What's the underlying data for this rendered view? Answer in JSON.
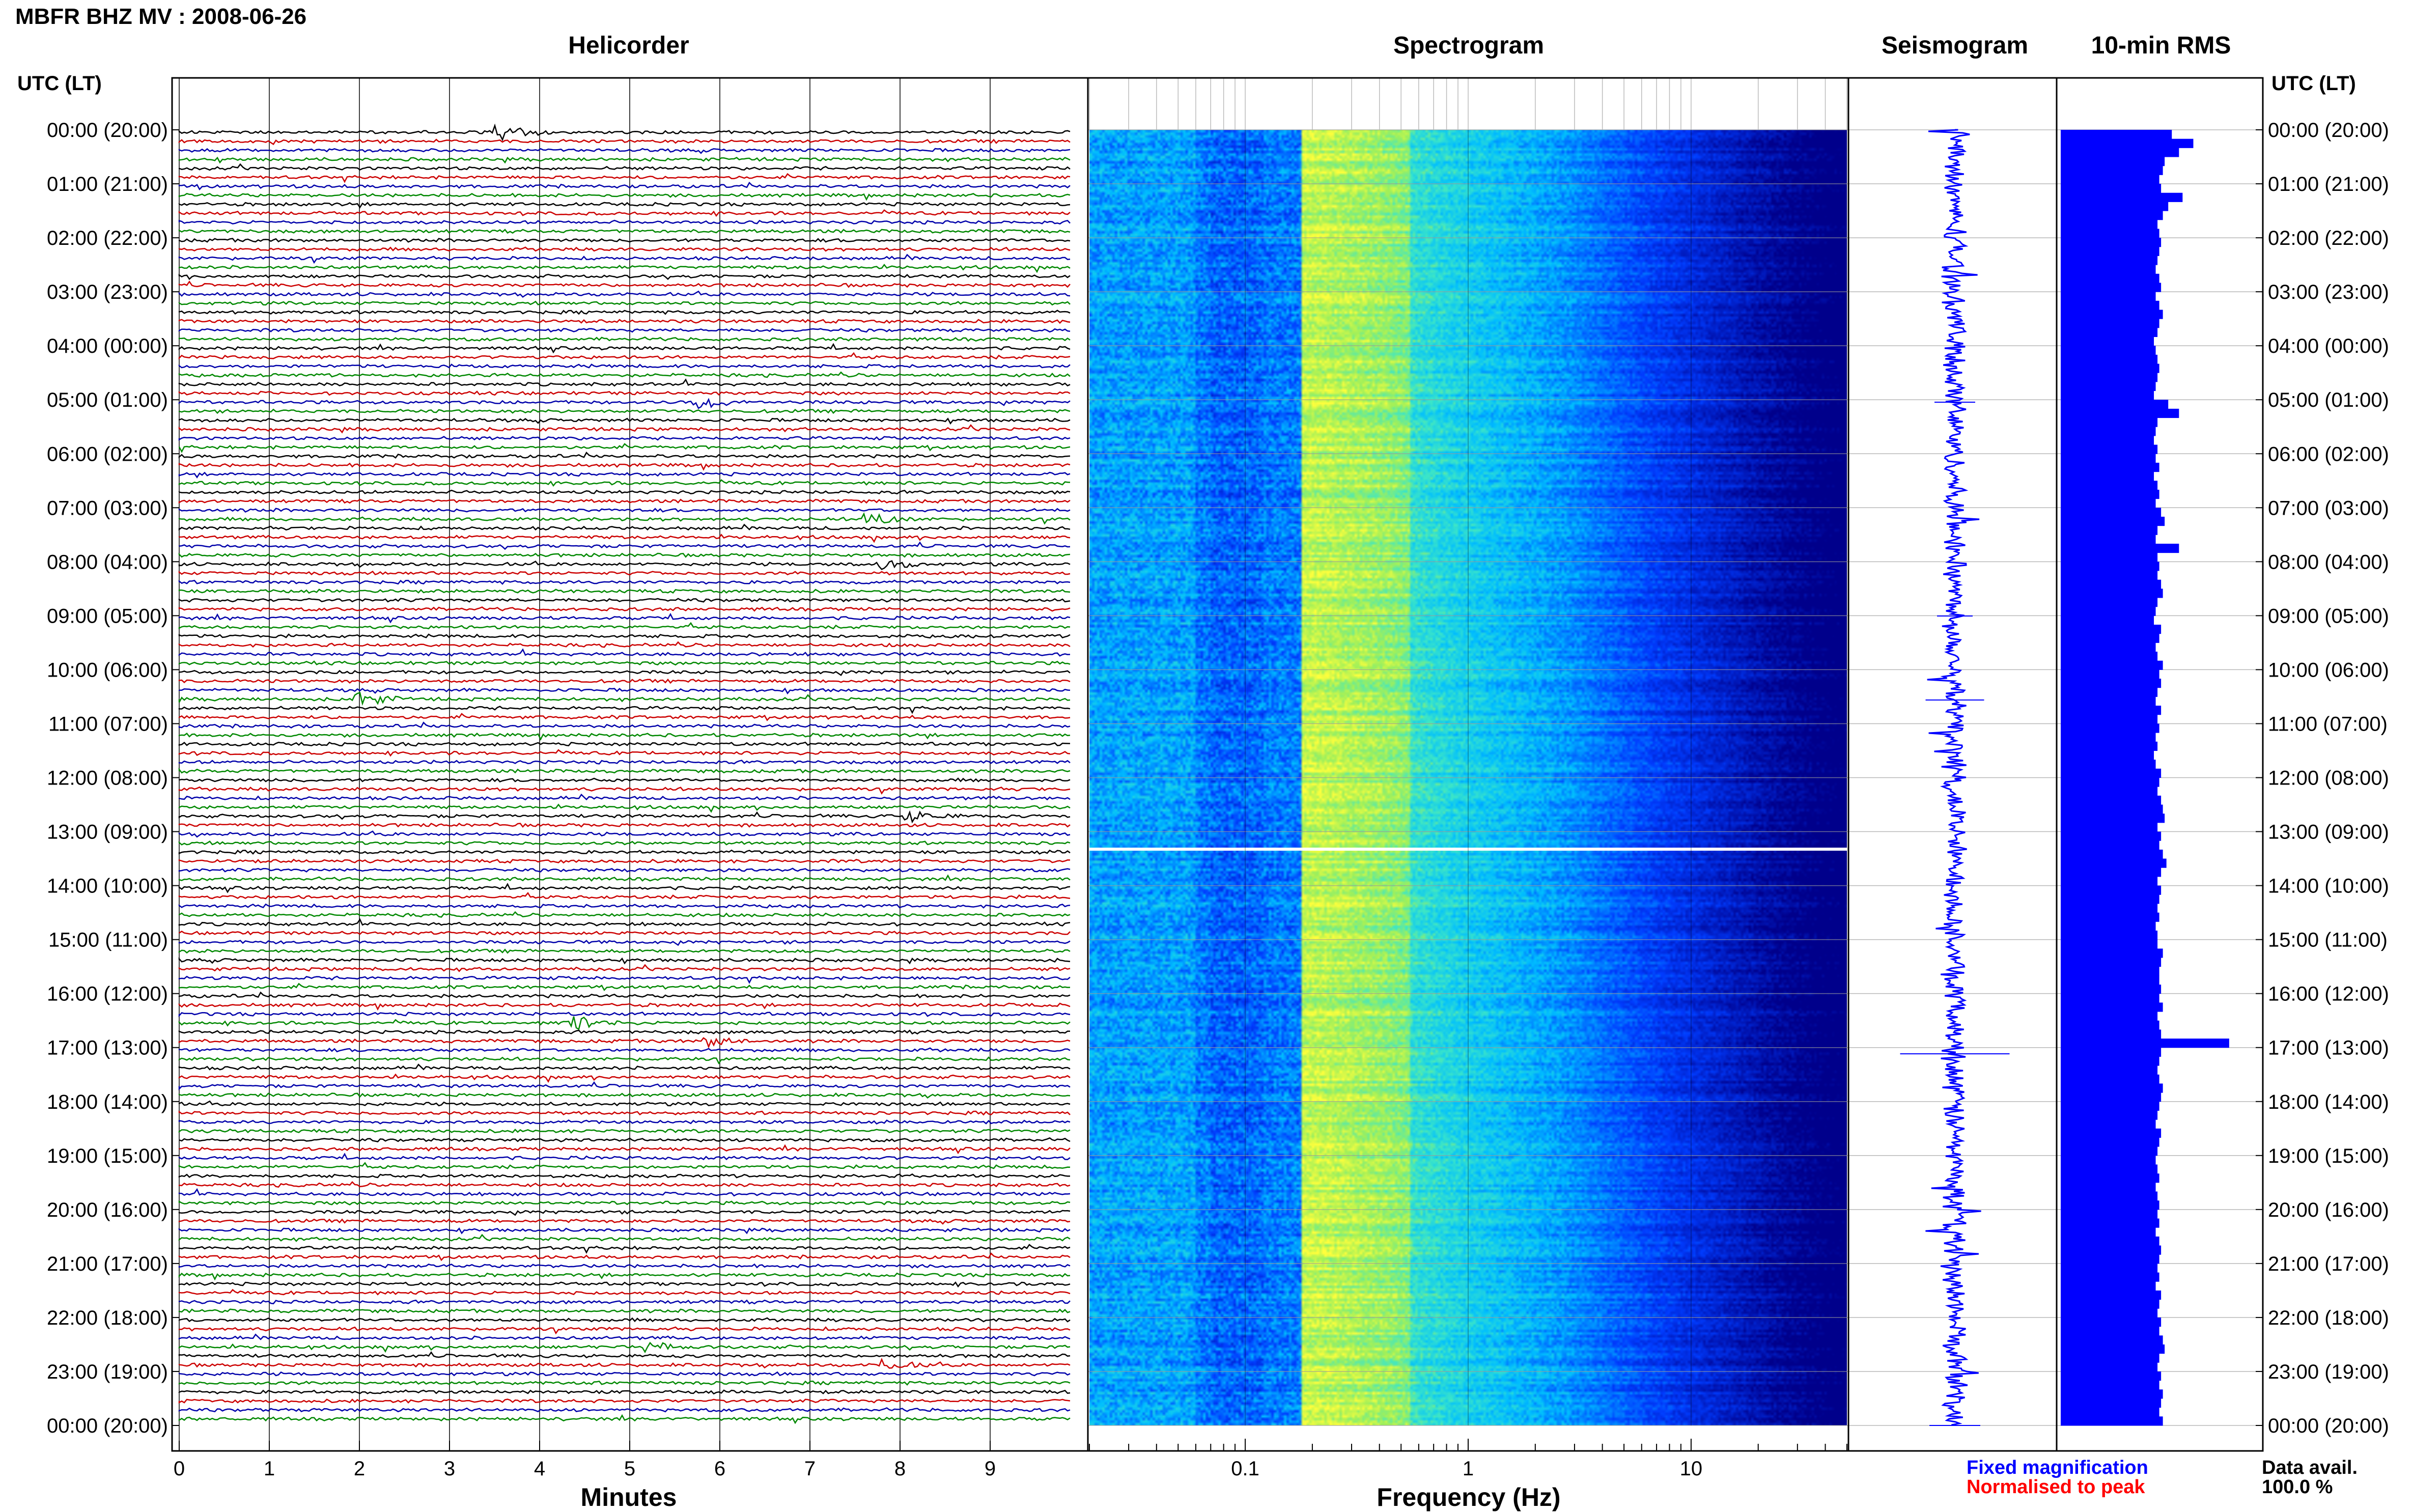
{
  "header": {
    "title": "MBFR BHZ MV : 2008-06-26"
  },
  "panels": {
    "helicorder": "Helicorder",
    "spectrogram": "Spectrogram",
    "seismogram": "Seismogram",
    "rms": "10-min RMS"
  },
  "axes": {
    "left_label": "UTC (LT)",
    "right_label": "UTC (LT)",
    "helicorder_xlabel": "Minutes",
    "spectrogram_xlabel": "Frequency (Hz)"
  },
  "legend": {
    "fixed": "Fixed magnification",
    "normalised": "Normalised to peak",
    "fixed_color": "#0000ff",
    "normalised_color": "#ff0000"
  },
  "data_availability": {
    "label": "Data avail.",
    "value": "100.0 %"
  },
  "colors": {
    "trace_cycle": [
      "#000000",
      "#cc0000",
      "#0000aa",
      "#008800"
    ],
    "spectrogram_low": "#00008b",
    "spectrogram_high": "#ffff33",
    "rms_bar": "#0000ff"
  },
  "chart_data": [
    {
      "type": "line",
      "title": "Helicorder",
      "xlabel": "Minutes",
      "x_ticks": [
        "0",
        "1",
        "2",
        "3",
        "4",
        "5",
        "6",
        "7",
        "8",
        "9"
      ],
      "xlim": [
        0,
        10
      ],
      "y_ticks_utc": [
        "00:00 (20:00)",
        "01:00 (21:00)",
        "02:00 (22:00)",
        "03:00 (23:00)",
        "04:00 (00:00)",
        "05:00 (01:00)",
        "06:00 (02:00)",
        "07:00 (03:00)",
        "08:00 (04:00)",
        "09:00 (05:00)",
        "10:00 (06:00)",
        "11:00 (07:00)",
        "12:00 (08:00)",
        "13:00 (09:00)",
        "14:00 (10:00)",
        "15:00 (11:00)",
        "16:00 (12:00)",
        "17:00 (13:00)",
        "18:00 (14:00)",
        "19:00 (15:00)",
        "20:00 (16:00)",
        "21:00 (17:00)",
        "22:00 (18:00)",
        "23:00 (19:00)",
        "00:00 (20:00)"
      ],
      "traces_per_hour": 6,
      "events": [
        {
          "hour": 0.0,
          "minute": 3.55,
          "amplitude": 3.0,
          "color": "#cc0000"
        },
        {
          "hour": 5.0,
          "minute": 5.75,
          "amplitude": 3.0,
          "color": "#cc0000"
        },
        {
          "hour": 7.17,
          "minute": 7.6,
          "amplitude": 2.6,
          "color": "#008800"
        },
        {
          "hour": 8.0,
          "minute": 7.8,
          "amplitude": 2.0,
          "color": "#000000"
        },
        {
          "hour": 10.5,
          "minute": 1.95,
          "amplitude": 3.5,
          "color": "#008800"
        },
        {
          "hour": 12.67,
          "minute": 8.1,
          "amplitude": 2.0,
          "color": "#000000"
        },
        {
          "hour": 16.5,
          "minute": 4.3,
          "amplitude": 4.0,
          "color": "#008800"
        },
        {
          "hour": 16.83,
          "minute": 5.85,
          "amplitude": 2.0,
          "color": "#0000aa"
        },
        {
          "hour": 22.83,
          "minute": 7.8,
          "amplitude": 2.0,
          "color": "#cc0000"
        },
        {
          "hour": 22.5,
          "minute": 5.2,
          "amplitude": 1.8,
          "color": "#008800"
        }
      ]
    },
    {
      "type": "heatmap",
      "title": "Spectrogram",
      "xlabel": "Frequency (Hz)",
      "x_scale": "log",
      "x_ticks": [
        "0.1",
        "1",
        "10"
      ],
      "xlim": [
        0.02,
        50
      ],
      "peak_band_hz": [
        0.18,
        0.5
      ],
      "gap_utc": "13:15"
    },
    {
      "type": "line",
      "title": "Seismogram",
      "note": "24-hour compressed vertical trace"
    },
    {
      "type": "bar",
      "title": "10-min RMS",
      "orientation": "horizontal",
      "values": [
        0.62,
        0.74,
        0.66,
        0.58,
        0.57,
        0.55,
        0.56,
        0.68,
        0.6,
        0.57,
        0.54,
        0.55,
        0.56,
        0.55,
        0.54,
        0.53,
        0.55,
        0.56,
        0.53,
        0.55,
        0.57,
        0.55,
        0.54,
        0.52,
        0.53,
        0.54,
        0.55,
        0.54,
        0.53,
        0.52,
        0.6,
        0.66,
        0.54,
        0.53,
        0.52,
        0.54,
        0.53,
        0.55,
        0.52,
        0.54,
        0.55,
        0.53,
        0.56,
        0.58,
        0.54,
        0.53,
        0.66,
        0.54,
        0.55,
        0.54,
        0.56,
        0.57,
        0.54,
        0.53,
        0.52,
        0.56,
        0.55,
        0.53,
        0.54,
        0.57,
        0.55,
        0.56,
        0.54,
        0.53,
        0.56,
        0.54,
        0.55,
        0.53,
        0.54,
        0.52,
        0.53,
        0.56,
        0.55,
        0.54,
        0.56,
        0.57,
        0.58,
        0.54,
        0.56,
        0.55,
        0.57,
        0.59,
        0.56,
        0.54,
        0.56,
        0.55,
        0.54,
        0.55,
        0.53,
        0.54,
        0.54,
        0.57,
        0.56,
        0.55,
        0.55,
        0.56,
        0.55,
        0.57,
        0.54,
        0.55,
        0.56,
        0.94,
        0.56,
        0.55,
        0.54,
        0.55,
        0.57,
        0.56,
        0.55,
        0.54,
        0.53,
        0.56,
        0.55,
        0.54,
        0.53,
        0.54,
        0.55,
        0.53,
        0.54,
        0.55,
        0.54,
        0.55,
        0.53,
        0.55,
        0.56,
        0.55,
        0.54,
        0.55,
        0.53,
        0.56,
        0.55,
        0.54,
        0.56,
        0.55,
        0.57,
        0.58,
        0.55,
        0.54,
        0.56,
        0.55,
        0.57,
        0.56,
        0.55,
        0.57
      ],
      "xlim": [
        0,
        1
      ]
    }
  ]
}
